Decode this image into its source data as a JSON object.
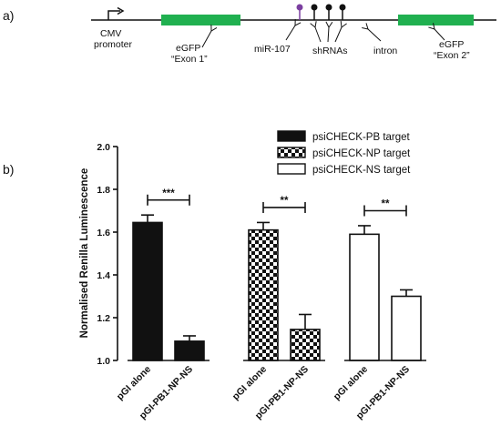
{
  "panel_a": {
    "label": "a)",
    "cmv_label_1": "CMV",
    "cmv_label_2": "promoter",
    "egfp1_label_1": "eGFP",
    "egfp1_label_2": "“Exon 1”",
    "mir_label": "miR-107",
    "shrna_label": "shRNAs",
    "intron_label": "intron",
    "egfp2_label_1": "eGFP",
    "egfp2_label_2": "“Exon 2”",
    "colors": {
      "exon": "#20b050",
      "mir": "#7b3fa0",
      "shrna": "#111111",
      "line": "#111111"
    }
  },
  "panel_b": {
    "label": "b)"
  },
  "chart_data": {
    "type": "bar",
    "ylabel": "Normalised Renilla Luminescence",
    "ylim": [
      1.0,
      2.0
    ],
    "yticks": [
      "1.0",
      "1.2",
      "1.4",
      "1.6",
      "1.8",
      "2.0"
    ],
    "legend_position": "top-right",
    "groups": [
      {
        "name": "psiCHECK-PB target",
        "fill": "solid",
        "categories": [
          "pGI alone",
          "pGI-PB1-NP-NS"
        ],
        "values": [
          1.645,
          1.09
        ],
        "errors": [
          0.035,
          0.025
        ],
        "significance": "***"
      },
      {
        "name": "psiCHECK-NP target",
        "fill": "checker",
        "categories": [
          "pGI alone",
          "pGI-PB1-NP-NS"
        ],
        "values": [
          1.61,
          1.145
        ],
        "errors": [
          0.035,
          0.07
        ],
        "significance": "**"
      },
      {
        "name": "psiCHECK-NS target",
        "fill": "empty",
        "categories": [
          "pGI alone",
          "pGI-PB1-NP-NS"
        ],
        "values": [
          1.59,
          1.3
        ],
        "errors": [
          0.04,
          0.03
        ],
        "significance": "**"
      }
    ]
  }
}
